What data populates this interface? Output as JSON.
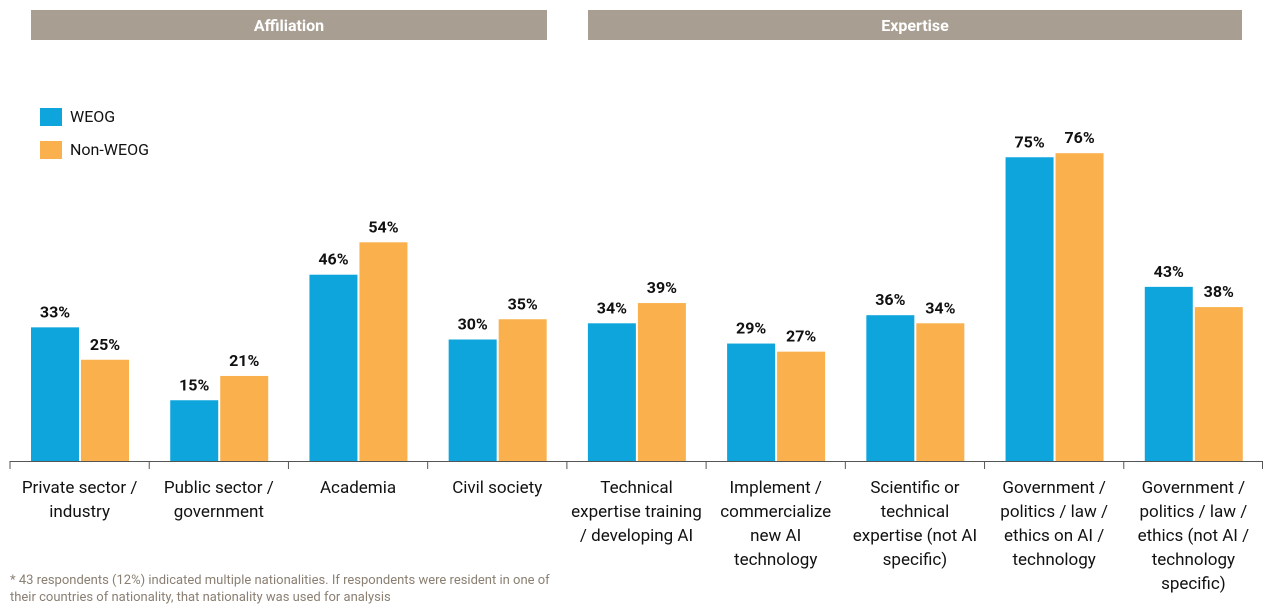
{
  "chart_data": {
    "type": "bar",
    "groups": [
      "Affiliation",
      "Expertise"
    ],
    "categories": [
      "Private sector / industry",
      "Public sector / government",
      "Academia",
      "Civil society",
      "Technical expertise training / developing AI",
      "Implement / commercialize new AI technology",
      "Scientific or technical expertise (not AI specific)",
      "Government / politics / law / ethics on AI / technology",
      "Government / politics / law / ethics (not AI / technology specific)"
    ],
    "series": [
      {
        "name": "WEOG",
        "color": "#0ea5dd",
        "values": [
          33,
          15,
          46,
          30,
          34,
          29,
          36,
          75,
          43
        ],
        "value_labels": [
          "33%",
          "15%",
          "46%",
          "30%",
          "34%",
          "29%",
          "36%",
          "75%",
          "43%"
        ]
      },
      {
        "name": "Non-WEOG",
        "color": "#f9b04d",
        "values": [
          25,
          21,
          54,
          35,
          39,
          27,
          34,
          76,
          38
        ],
        "value_labels": [
          "25%",
          "21%",
          "54%",
          "35%",
          "39%",
          "27%",
          "34%",
          "76%",
          "38%"
        ]
      }
    ],
    "footnote": "* 43 respondents (12%) indicated multiple nationalities. If respondents were resident in one of their countries of nationality, that nationality was used for analysis"
  }
}
